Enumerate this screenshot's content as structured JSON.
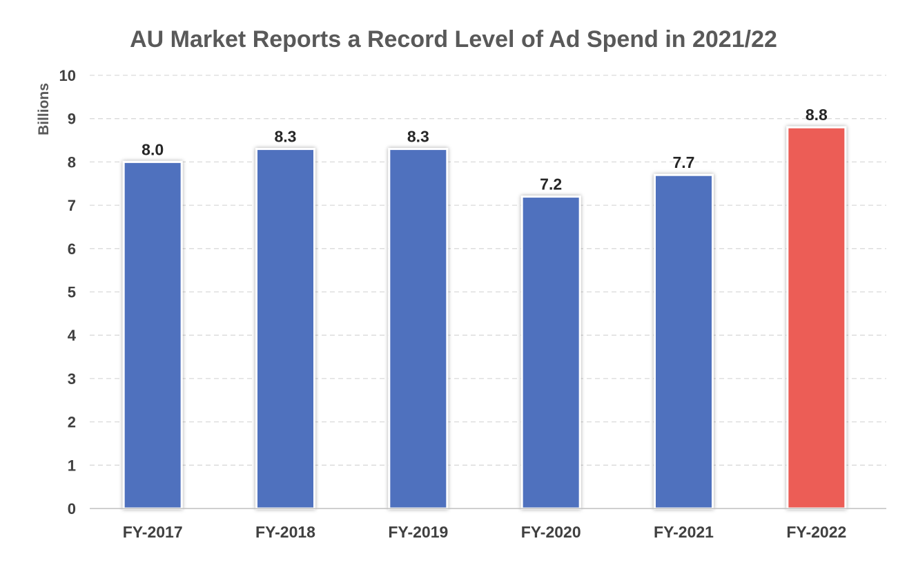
{
  "chart_data": {
    "type": "bar",
    "title": "AU Market Reports a Record Level of Ad Spend in 2021/22",
    "ylabel": "Billions",
    "xlabel": "",
    "categories": [
      "FY-2017",
      "FY-2018",
      "FY-2019",
      "FY-2020",
      "FY-2021",
      "FY-2022"
    ],
    "values": [
      8.0,
      8.3,
      8.3,
      7.2,
      7.7,
      8.8
    ],
    "value_labels": [
      "8.0",
      "8.3",
      "8.3",
      "7.2",
      "7.7",
      "8.8"
    ],
    "ylim": [
      0,
      10
    ],
    "yticks": [
      "0",
      "1",
      "2",
      "3",
      "4",
      "5",
      "6",
      "7",
      "8",
      "9",
      "10"
    ],
    "grid": true,
    "legend": "none",
    "bar_colors": [
      "#4F71BE",
      "#4F71BE",
      "#4F71BE",
      "#4F71BE",
      "#4F71BE",
      "#EC5D57"
    ],
    "bar_edge_color": "#ffffff",
    "grid_color": "#D9D9D9"
  }
}
